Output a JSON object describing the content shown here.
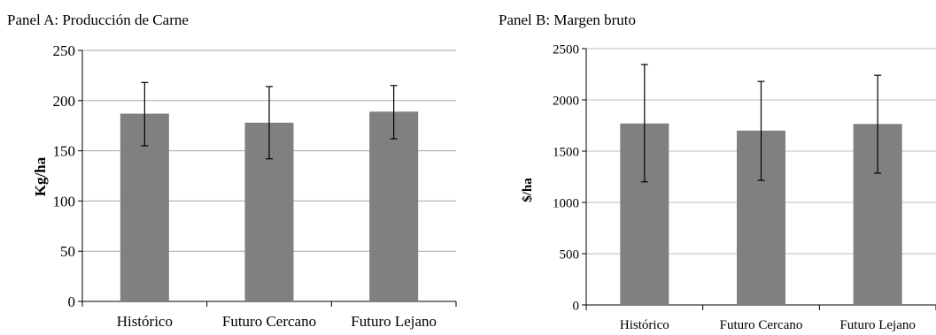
{
  "chart_data": [
    {
      "type": "bar",
      "title": "Panel A: Producción de Carne",
      "xlabel": "",
      "ylabel": "Kg/ha",
      "categories": [
        "Histórico",
        "Futuro Cercano",
        "Futuro Lejano"
      ],
      "values": [
        187,
        178,
        189
      ],
      "error_low": [
        155,
        142,
        162
      ],
      "error_high": [
        218,
        214,
        215
      ],
      "yticks": [
        "0",
        "50",
        "100",
        "150",
        "200",
        "250"
      ],
      "ylim": [
        0,
        250
      ],
      "grid": true,
      "bar_color": "#808080"
    },
    {
      "type": "bar",
      "title": "Panel B: Margen bruto",
      "xlabel": "",
      "ylabel": "$/ha",
      "categories": [
        "Histórico",
        "Futuro Cercano",
        "Futuro Lejano"
      ],
      "values": [
        1770,
        1700,
        1765
      ],
      "error_low": [
        1200,
        1215,
        1285
      ],
      "error_high": [
        2345,
        2180,
        2240
      ],
      "yticks": [
        "0",
        "500",
        "1000",
        "1500",
        "2000",
        "2500"
      ],
      "ylim": [
        0,
        2500
      ],
      "grid": true,
      "bar_color": "#808080"
    }
  ]
}
